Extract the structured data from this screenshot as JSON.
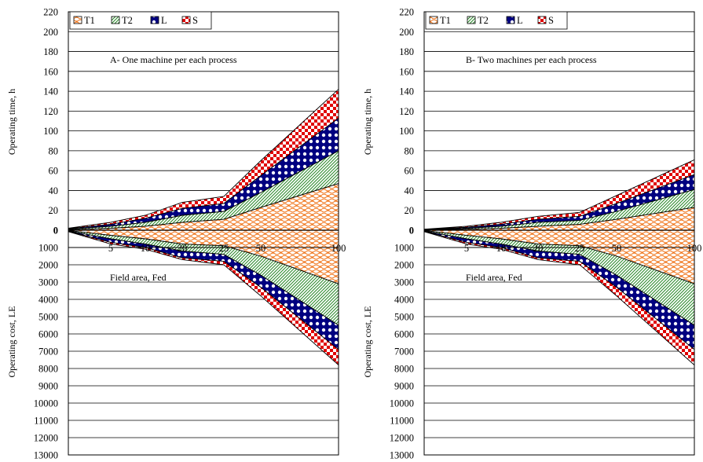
{
  "chart_data": [
    {
      "type": "area",
      "title": "A- One machine per each process",
      "xlabel": "Field area, Fed",
      "ylabel_top": "Operating time, h",
      "ylabel_bottom": "Operating cost, LE",
      "x": [
        1,
        5,
        10,
        20,
        25,
        50,
        100
      ],
      "x_tick_labels": [
        "5",
        "10",
        "20",
        "25",
        "50",
        "100"
      ],
      "time_ylim": [
        0,
        220
      ],
      "time_ticks": [
        0,
        20,
        40,
        60,
        80,
        100,
        120,
        140,
        160,
        180,
        200,
        220
      ],
      "cost_ylim": [
        0,
        13000
      ],
      "cost_ticks": [
        1000,
        2000,
        3000,
        4000,
        5000,
        6000,
        7000,
        8000,
        9000,
        10000,
        11000,
        12000,
        13000
      ],
      "series_time_cumulative": [
        {
          "name": "T1",
          "values": [
            0.5,
            2,
            4,
            8,
            11,
            23,
            47
          ]
        },
        {
          "name": "T2",
          "values": [
            1,
            4,
            8,
            15,
            19,
            38,
            80
          ]
        },
        {
          "name": "L",
          "values": [
            1.5,
            6,
            12,
            22,
            27,
            55,
            113
          ]
        },
        {
          "name": "S",
          "values": [
            2,
            8,
            15,
            28,
            34,
            70,
            142
          ]
        }
      ],
      "series_cost_cumulative": [
        {
          "name": "T1",
          "values": [
            20,
            300,
            500,
            800,
            900,
            1500,
            3100
          ]
        },
        {
          "name": "T2",
          "values": [
            40,
            500,
            800,
            1200,
            1400,
            2600,
            5500
          ]
        },
        {
          "name": "L",
          "values": [
            60,
            700,
            1000,
            1600,
            1800,
            3300,
            6900
          ]
        },
        {
          "name": "S",
          "values": [
            80,
            800,
            1100,
            1700,
            2000,
            3800,
            7800
          ]
        }
      ],
      "legend": [
        "T1",
        "T2",
        "L",
        "S"
      ],
      "legend_position": "top-left"
    },
    {
      "type": "area",
      "title": "B- Two machines per each process",
      "xlabel": "Field area, Fed",
      "ylabel_top": "Operating time, h",
      "ylabel_bottom": "Operating cost, LE",
      "x": [
        1,
        5,
        10,
        20,
        25,
        50,
        100
      ],
      "x_tick_labels": [
        "5",
        "10",
        "20",
        "25",
        "50",
        "100"
      ],
      "time_ylim": [
        0,
        220
      ],
      "time_ticks": [
        0,
        20,
        40,
        60,
        80,
        100,
        120,
        140,
        160,
        180,
        200,
        220
      ],
      "cost_ylim": [
        0,
        13000
      ],
      "cost_ticks": [
        1000,
        2000,
        3000,
        4000,
        5000,
        6000,
        7000,
        8000,
        9000,
        10000,
        11000,
        12000,
        13000
      ],
      "series_time_cumulative": [
        {
          "name": "T1",
          "values": [
            0.3,
            1,
            2,
            4,
            6,
            11,
            23
          ]
        },
        {
          "name": "T2",
          "values": [
            0.5,
            2,
            4,
            8,
            10,
            19,
            41
          ]
        },
        {
          "name": "L",
          "values": [
            0.8,
            3,
            6,
            11,
            14,
            27,
            56
          ]
        },
        {
          "name": "S",
          "values": [
            1,
            4,
            8,
            14,
            18,
            35,
            71
          ]
        }
      ],
      "series_cost_cumulative": [
        {
          "name": "T1",
          "values": [
            20,
            300,
            500,
            800,
            900,
            1500,
            3100
          ]
        },
        {
          "name": "T2",
          "values": [
            40,
            500,
            800,
            1200,
            1400,
            2600,
            5500
          ]
        },
        {
          "name": "L",
          "values": [
            60,
            700,
            1000,
            1600,
            1800,
            3300,
            6900
          ]
        },
        {
          "name": "S",
          "values": [
            80,
            800,
            1100,
            1700,
            2000,
            3800,
            7800
          ]
        }
      ],
      "legend": [
        "T1",
        "T2",
        "L",
        "S"
      ],
      "legend_position": "top-left"
    }
  ],
  "colors": {
    "T1": "#f07820",
    "T2": "#2e8b2e",
    "L": "#000080",
    "S": "#e00000"
  }
}
